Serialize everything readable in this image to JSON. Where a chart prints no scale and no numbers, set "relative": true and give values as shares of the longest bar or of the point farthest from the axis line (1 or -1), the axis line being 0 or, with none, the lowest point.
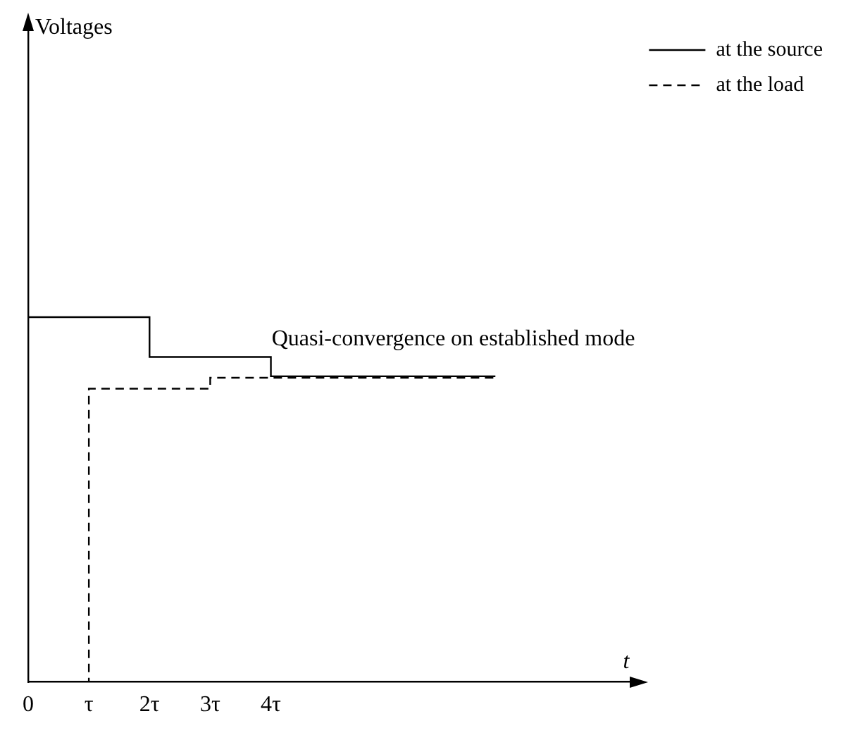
{
  "chart_data": {
    "type": "step",
    "relative": true,
    "xlabel": "t",
    "xlim": [
      0,
      10
    ],
    "xticks": [
      0,
      {
        "value": 1,
        "label": "τ"
      },
      {
        "value": 2,
        "label": "2τ"
      },
      {
        "value": 3,
        "label": "3τ"
      },
      {
        "value": 4,
        "label": "4τ"
      }
    ],
    "series": [
      {
        "name": "at the source",
        "color": "#000000",
        "line_style": "solid",
        "x": [
          0,
          2,
          4,
          7.7
        ],
        "values": [
          1,
          0.891,
          0.838,
          0.838
        ]
      },
      {
        "name": "at the load",
        "color": "#000000",
        "line_style": "dashed",
        "x": [
          0,
          1,
          3,
          7.7
        ],
        "values": [
          0,
          0.804,
          0.834,
          0.834
        ]
      }
    ],
    "annotations": [
      "Voltages",
      "Quasi-convergence on established mode"
    ],
    "legend": "top right",
    "grid": false,
    "marker": "none"
  }
}
